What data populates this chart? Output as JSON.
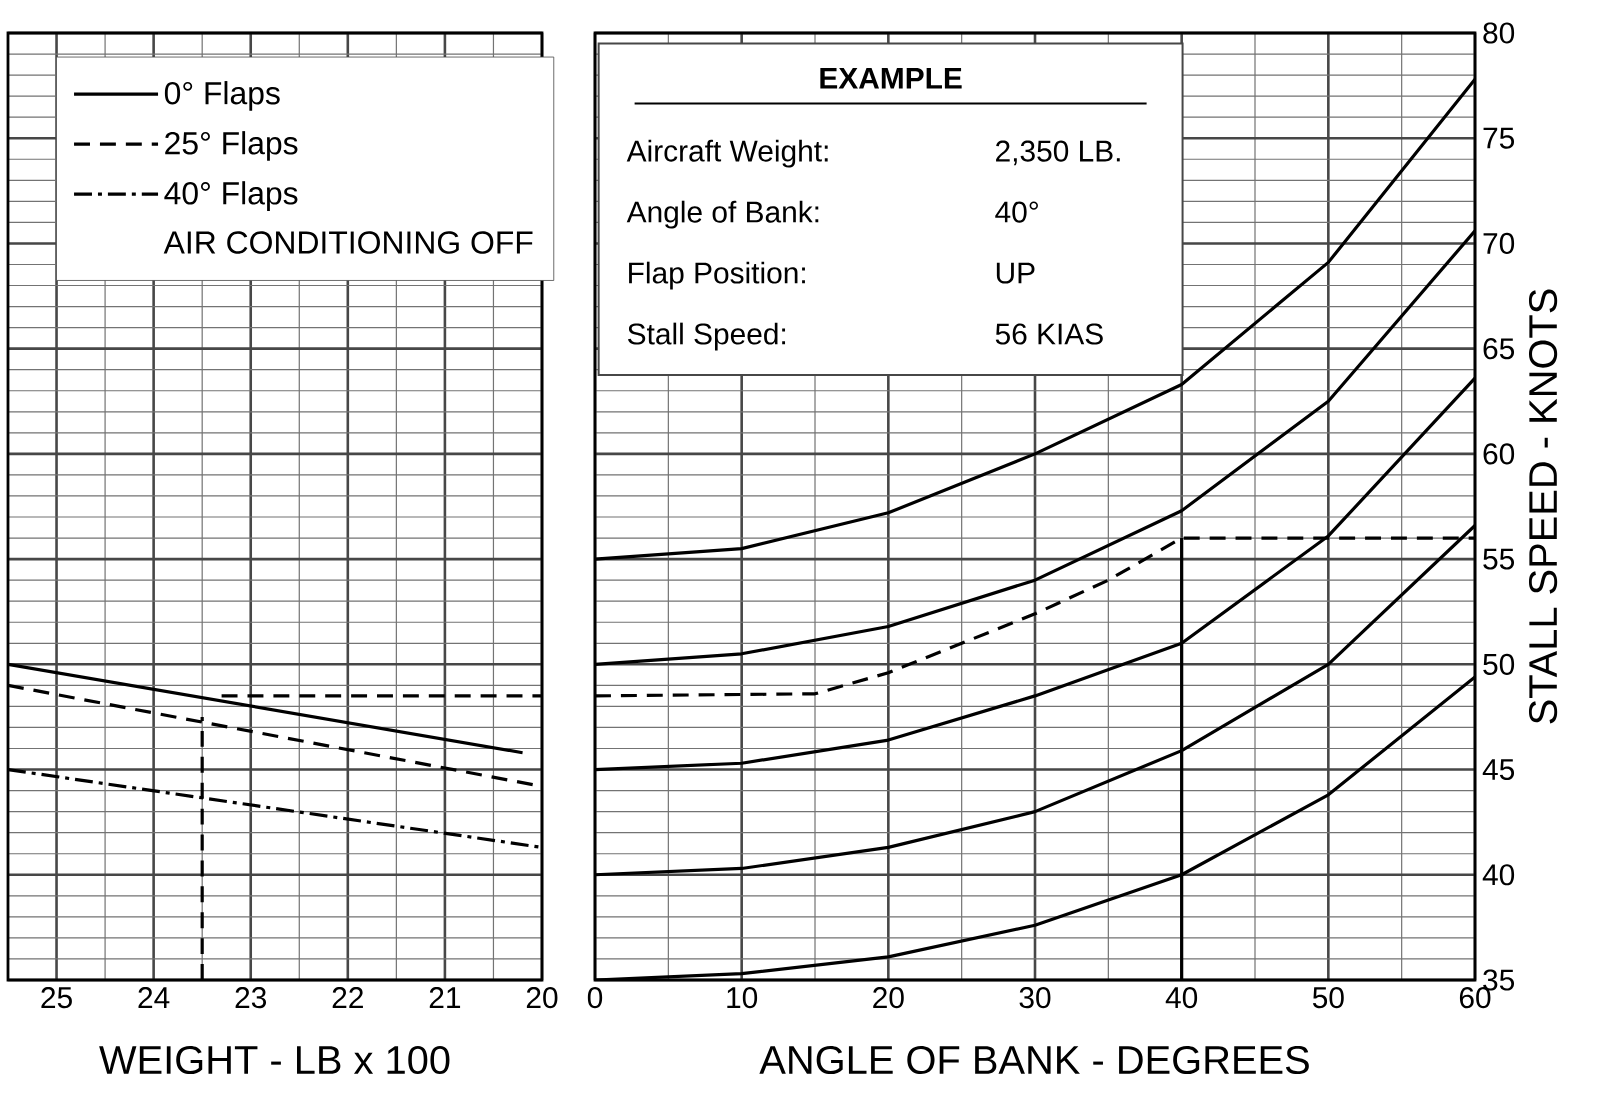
{
  "chart_data": [
    {
      "type": "line",
      "xlabel": "WEIGHT - LB x 100",
      "xlim": [
        25.5,
        20
      ],
      "xticks": [
        25,
        24,
        23,
        22,
        21,
        20
      ],
      "ylim": [
        35,
        80
      ],
      "yticks": [
        35,
        40,
        45,
        50,
        55,
        60,
        65,
        70,
        75,
        80
      ],
      "tick_labels": "x",
      "grid": true,
      "legend": "top left",
      "annotations": [
        "AIR CONDITIONING OFF"
      ],
      "series": [
        {
          "name": "0° Flaps",
          "color": "#000000",
          "line_style": "solid",
          "x": [
            25.5,
            20.2
          ],
          "values": [
            50.0,
            45.8
          ]
        },
        {
          "name": "25° Flaps",
          "color": "#000000",
          "line_style": "dashed",
          "x": [
            25.5,
            20
          ],
          "values": [
            49.0,
            44.2
          ]
        },
        {
          "name": "40° Flaps",
          "color": "#000000",
          "line_style": "dashdot",
          "x": [
            25.5,
            20
          ],
          "values": [
            45.0,
            41.3
          ]
        },
        {
          "color": "#000000",
          "line_style": "dashed",
          "x": [
            23.5,
            23.5
          ],
          "values": [
            35,
            47.5
          ]
        },
        {
          "color": "#000000",
          "line_style": "dashed",
          "x": [
            23.3,
            20
          ],
          "values": [
            48.5,
            48.5
          ]
        }
      ]
    },
    {
      "type": "line",
      "xlabel": "ANGLE OF BANK - DEGREES",
      "ylabel": "STALL SPEED - KNOTS",
      "xlim": [
        0,
        60
      ],
      "xticks": [
        0,
        10,
        20,
        30,
        40,
        50,
        60
      ],
      "ylim": [
        35,
        80
      ],
      "yticks": [
        35,
        40,
        45,
        50,
        55,
        60,
        65,
        70,
        75,
        80
      ],
      "grid": true,
      "annotations": [
        "EXAMPLE",
        "Aircraft Weight:",
        "2,350 LB.",
        "Angle of Bank:",
        "40°",
        "Flap Position:",
        "UP",
        "Stall Speed:",
        "56 KIAS"
      ],
      "series": [
        {
          "color": "#000000",
          "line_style": "solid",
          "x": [
            0,
            10,
            20,
            30,
            40,
            50,
            60
          ],
          "values": [
            55,
            55.5,
            57.2,
            60.0,
            63.3,
            69.1,
            77.8
          ]
        },
        {
          "color": "#000000",
          "line_style": "solid",
          "x": [
            0,
            10,
            20,
            30,
            40,
            50,
            60
          ],
          "values": [
            50,
            50.5,
            51.8,
            54.0,
            57.3,
            62.5,
            70.6
          ]
        },
        {
          "color": "#000000",
          "line_style": "solid",
          "x": [
            0,
            10,
            20,
            30,
            40,
            50,
            60
          ],
          "values": [
            45,
            45.3,
            46.4,
            48.5,
            51.0,
            56.1,
            63.6
          ]
        },
        {
          "color": "#000000",
          "line_style": "solid",
          "x": [
            0,
            10,
            20,
            30,
            40,
            50,
            60
          ],
          "values": [
            40,
            40.3,
            41.3,
            43.0,
            45.9,
            50.0,
            56.6
          ]
        },
        {
          "color": "#000000",
          "line_style": "solid",
          "x": [
            0,
            10,
            20,
            30,
            40,
            50,
            60
          ],
          "values": [
            35,
            35.3,
            36.1,
            37.6,
            40.0,
            43.8,
            49.4
          ]
        },
        {
          "color": "#000000",
          "line_style": "dashed",
          "x": [
            0,
            15,
            20,
            25,
            30,
            35,
            40,
            60
          ],
          "values": [
            48.5,
            48.6,
            49.6,
            51.0,
            52.4,
            54.0,
            56,
            56
          ]
        },
        {
          "color": "#000000",
          "line_style": "solid",
          "x": [
            40,
            40
          ],
          "values": [
            56,
            35
          ]
        }
      ]
    }
  ]
}
